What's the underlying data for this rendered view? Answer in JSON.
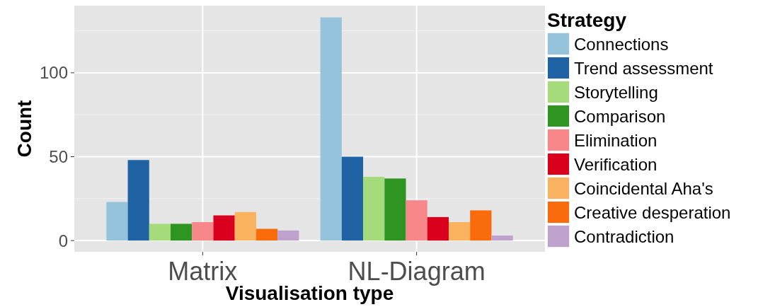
{
  "chart_data": {
    "type": "bar",
    "xlabel": "Visualisation type",
    "ylabel": "Count",
    "legend_title": "Strategy",
    "categories": [
      "Matrix",
      "NL-Diagram"
    ],
    "series": [
      {
        "name": "Connections",
        "color": "#96c3dc",
        "values": [
          23,
          133
        ]
      },
      {
        "name": "Trend assessment",
        "color": "#1f63a5",
        "values": [
          48,
          50
        ]
      },
      {
        "name": "Storytelling",
        "color": "#a6db7b",
        "values": [
          10,
          38
        ]
      },
      {
        "name": "Comparison",
        "color": "#2e9523",
        "values": [
          10,
          37
        ]
      },
      {
        "name": "Elimination",
        "color": "#f8878a",
        "values": [
          11,
          24
        ]
      },
      {
        "name": "Verification",
        "color": "#da001d",
        "values": [
          15,
          14
        ]
      },
      {
        "name": "Coincidental Aha's",
        "color": "#f9b25f",
        "values": [
          17,
          11
        ]
      },
      {
        "name": "Creative desperation",
        "color": "#fa6b0c",
        "values": [
          7,
          18
        ]
      },
      {
        "name": "Contradiction",
        "color": "#bea1cd",
        "values": [
          6,
          3
        ]
      }
    ],
    "ylim": [
      -6.7,
      140
    ],
    "yticks": [
      0,
      50,
      100
    ],
    "grid": true,
    "legend": "right"
  }
}
